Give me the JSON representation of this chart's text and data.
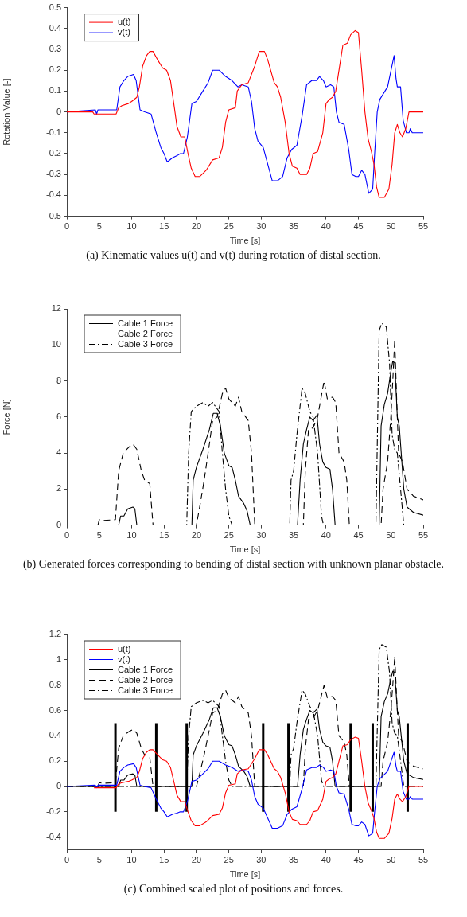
{
  "chart_data": [
    {
      "type": "line",
      "xlabel": "Time [s]",
      "ylabel": "Rotation Value [-]",
      "xlim": [
        0,
        55
      ],
      "xticks": [
        0,
        5,
        10,
        15,
        20,
        25,
        30,
        35,
        40,
        45,
        50,
        55
      ],
      "ylim": [
        -0.5,
        0.5
      ],
      "yticks": [
        -0.5,
        -0.4,
        -0.3,
        -0.2,
        -0.1,
        0,
        0.1,
        0.2,
        0.3,
        0.4,
        0.5
      ],
      "legend": "top left",
      "marker": "none",
      "annotations": [
        "(a) Kinematic values u(t) and v(t) during rotation of distal section."
      ],
      "series": [
        {
          "name": "u(t)",
          "color": "#ff0000",
          "line_style": "solid",
          "x": [
            0,
            4,
            4.2,
            5,
            7.6,
            8,
            8.5,
            9.5,
            10,
            10.8,
            11.2,
            11.7,
            12.3,
            12.8,
            13.3,
            14,
            14.8,
            15.4,
            16,
            16.6,
            17,
            17.6,
            18.2,
            18.7,
            19.2,
            19.8,
            20.5,
            21.5,
            22.5,
            23.5,
            24,
            24.5,
            25,
            26,
            26.3,
            27,
            28,
            29,
            29.7,
            30.5,
            31,
            32,
            32.5,
            33,
            33.7,
            34.3,
            34.8,
            35.5,
            36,
            37,
            37.5,
            38,
            38.7,
            39.5,
            40,
            40.5,
            41,
            41.5,
            42,
            42.6,
            43.3,
            43.8,
            44.5,
            45,
            45.5,
            46,
            46.5,
            47,
            47.4,
            47.8,
            48.2,
            49,
            49.7,
            50.2,
            50.6,
            51,
            51.4,
            51.8,
            52.3,
            52.8,
            53.5,
            55
          ],
          "values": [
            0,
            0,
            -0.01,
            -0.01,
            -0.01,
            0.02,
            0.03,
            0.04,
            0.05,
            0.07,
            0.12,
            0.22,
            0.27,
            0.29,
            0.29,
            0.25,
            0.21,
            0.2,
            0.15,
            0.02,
            -0.07,
            -0.12,
            -0.12,
            -0.2,
            -0.27,
            -0.31,
            -0.31,
            -0.28,
            -0.23,
            -0.22,
            -0.17,
            -0.05,
            0.01,
            0.02,
            0.1,
            0.13,
            0.14,
            0.22,
            0.29,
            0.29,
            0.25,
            0.14,
            0.12,
            0.07,
            -0.05,
            -0.2,
            -0.26,
            -0.27,
            -0.3,
            -0.3,
            -0.27,
            -0.2,
            -0.19,
            -0.1,
            0.04,
            0.06,
            0.07,
            0.1,
            0.2,
            0.32,
            0.33,
            0.37,
            0.39,
            0.38,
            0.2,
            0,
            -0.13,
            -0.19,
            -0.25,
            -0.36,
            -0.41,
            -0.41,
            -0.37,
            -0.25,
            -0.1,
            -0.06,
            -0.1,
            -0.12,
            -0.08,
            0,
            0,
            0
          ]
        },
        {
          "name": "v(t)",
          "color": "#0000ff",
          "line_style": "solid",
          "x": [
            0,
            4.4,
            4.6,
            4.8,
            7.7,
            8.2,
            8.8,
            9.4,
            10.3,
            10.7,
            11.3,
            12,
            13,
            13.8,
            14.5,
            15,
            15.5,
            16.3,
            17,
            17.5,
            18,
            18.6,
            19.3,
            20,
            21,
            21.8,
            22.5,
            23.5,
            24.5,
            25.5,
            26.1,
            26.4,
            27,
            28,
            28.5,
            29,
            29.5,
            30.3,
            31,
            31.7,
            32.5,
            33.3,
            34,
            34.7,
            35.5,
            36.3,
            37,
            37.8,
            38.5,
            39,
            39.6,
            40,
            40.7,
            41.2,
            41.6,
            42,
            42.8,
            43.5,
            44,
            44.6,
            45,
            45.5,
            46,
            46.6,
            47.2,
            47.5,
            47.9,
            48.3,
            49.5,
            50.1,
            50.5,
            50.8,
            51,
            51.5,
            51.9,
            52.4,
            52.8,
            53,
            53.3,
            55
          ],
          "values": [
            0,
            0.01,
            -0.01,
            0.01,
            0.01,
            0.12,
            0.15,
            0.17,
            0.18,
            0.15,
            0.01,
            0,
            -0.01,
            -0.1,
            -0.17,
            -0.2,
            -0.24,
            -0.22,
            -0.21,
            -0.2,
            -0.2,
            -0.12,
            0.04,
            0.05,
            0.1,
            0.14,
            0.2,
            0.2,
            0.17,
            0.15,
            0.13,
            0.12,
            0.13,
            0.12,
            0.05,
            -0.08,
            -0.14,
            -0.17,
            -0.25,
            -0.33,
            -0.33,
            -0.31,
            -0.22,
            -0.18,
            -0.16,
            -0.02,
            0.13,
            0.15,
            0.15,
            0.17,
            0.15,
            0.12,
            0.13,
            0.12,
            0,
            -0.05,
            -0.06,
            -0.18,
            -0.3,
            -0.31,
            -0.31,
            -0.28,
            -0.3,
            -0.39,
            -0.37,
            -0.2,
            0,
            0.06,
            0.12,
            0.21,
            0.27,
            0.16,
            0.12,
            0.12,
            -0.04,
            -0.1,
            -0.1,
            -0.08,
            -0.1,
            -0.1
          ]
        }
      ]
    },
    {
      "type": "line",
      "xlabel": "Time [s]",
      "ylabel": "Force [N]",
      "xlim": [
        0,
        55
      ],
      "xticks": [
        0,
        5,
        10,
        15,
        20,
        25,
        30,
        35,
        40,
        45,
        50,
        55
      ],
      "ylim": [
        0,
        12
      ],
      "yticks": [
        0,
        2,
        4,
        6,
        8,
        10,
        12
      ],
      "legend": "top left",
      "marker": "none",
      "annotations": [
        "(b) Generated forces corresponding to bending of distal section with unknown planar obstacle."
      ],
      "series": [
        {
          "name": "Cable 1 Force",
          "color": "#000000",
          "line_style": "solid",
          "x": [
            0,
            8,
            8.3,
            8.8,
            9.4,
            10.2,
            10.5,
            10.8,
            19.3,
            19.5,
            20,
            21,
            22,
            22.6,
            23.2,
            23.7,
            24.3,
            25,
            25.5,
            26,
            26.5,
            27.3,
            27.8,
            28.3,
            35.6,
            36,
            36.5,
            37,
            37.5,
            38,
            38.6,
            39,
            39.5,
            40,
            40.6,
            41,
            41.4,
            48.2,
            48.5,
            49,
            49.5,
            50,
            50.3,
            50.6,
            51,
            51.3,
            51.5,
            52,
            52.5,
            53.5,
            55
          ],
          "values": [
            0,
            0,
            0.5,
            0.5,
            0.9,
            1.0,
            0.9,
            0,
            0,
            2.5,
            3.2,
            4.2,
            5.3,
            6.2,
            6.2,
            5.5,
            4.0,
            3.3,
            3.2,
            2.5,
            1.6,
            1.2,
            0.8,
            0,
            0,
            2.5,
            4.5,
            5.3,
            6.0,
            5.8,
            6.1,
            4.5,
            3.5,
            3.2,
            3.1,
            2.0,
            0,
            0,
            5.5,
            6.7,
            7.3,
            8.5,
            9.1,
            9.0,
            6.0,
            5.5,
            4.5,
            2.0,
            1.0,
            0.7,
            0.55
          ]
        },
        {
          "name": "Cable 2 Force",
          "color": "#000000",
          "line_style": "dashed",
          "x": [
            0,
            4.8,
            5,
            5.5,
            7.5,
            8,
            8.7,
            9.5,
            10.2,
            10.8,
            11.5,
            12,
            12.8,
            13.3,
            20,
            20.5,
            21.2,
            22,
            22.5,
            23.2,
            24,
            24.5,
            25,
            26,
            26.5,
            27,
            28,
            28.5,
            29,
            36.5,
            36.8,
            37.3,
            38,
            38.7,
            39.2,
            39.7,
            40.2,
            41,
            41.5,
            42,
            42.8,
            43.2,
            43.6,
            48.5,
            48.8,
            49.5,
            50,
            50.3,
            50.6,
            50.9,
            51.2,
            51.8,
            52.5,
            53.5,
            55
          ],
          "values": [
            0,
            0,
            0.3,
            0.25,
            0.3,
            3.0,
            4.0,
            4.3,
            4.5,
            4.2,
            3.0,
            2.5,
            2.3,
            0,
            0,
            1.0,
            2.5,
            4.5,
            5.8,
            6.0,
            7.3,
            7.6,
            7.0,
            6.6,
            7.1,
            6.3,
            5.8,
            4.0,
            0,
            0,
            3.0,
            5.3,
            5.4,
            6.0,
            7.0,
            8.0,
            7.0,
            7.1,
            6.8,
            4.0,
            3.5,
            2.5,
            0,
            0,
            2.0,
            3.5,
            6.0,
            8.0,
            10.3,
            7.0,
            4.0,
            3.5,
            2.0,
            1.6,
            1.4
          ]
        },
        {
          "name": "Cable 3 Force",
          "color": "#000000",
          "line_style": "dashdot",
          "x": [
            0,
            18.5,
            18.8,
            19.2,
            20,
            21,
            21.8,
            22.5,
            23.5,
            24,
            24.5,
            25,
            25.5,
            34.4,
            34.6,
            35,
            35.5,
            36.3,
            36.8,
            37.5,
            38,
            38.7,
            39.3,
            39.6,
            47.7,
            48.2,
            48.6,
            49.3,
            49.8,
            50.2,
            50.6,
            51,
            51.5,
            52,
            55
          ],
          "values": [
            0,
            0,
            4.0,
            6.3,
            6.6,
            6.8,
            6.6,
            6.8,
            6.3,
            4.0,
            2.0,
            0.5,
            0,
            0,
            2.5,
            3.0,
            5.0,
            7.6,
            7.3,
            6.3,
            6.0,
            4.0,
            0.5,
            0,
            0,
            10.8,
            11.2,
            11.0,
            9.0,
            5.0,
            4.2,
            4.0,
            2.0,
            0,
            0
          ]
        }
      ]
    },
    {
      "type": "line",
      "xlabel": "Time [s]",
      "xlim": [
        0,
        55
      ],
      "xticks": [
        0,
        5,
        10,
        15,
        20,
        25,
        30,
        35,
        40,
        45,
        50,
        55
      ],
      "ylim": [
        -0.5,
        1.2
      ],
      "yticks": [
        -0.4,
        -0.2,
        0,
        0.2,
        0.4,
        0.6,
        0.8,
        1,
        1.2
      ],
      "legend": "top left",
      "marker": "none",
      "annotations": [
        "(c) Combined scaled plot of positions and forces."
      ],
      "series": [
        {
          "name": "u(t)",
          "color": "#ff0000",
          "line_style": "solid",
          "x": [
            4.2,
            5,
            7.6,
            8,
            8.5,
            9.5,
            10,
            10.8,
            11.2,
            11.7,
            12.3,
            12.8,
            13.3,
            14,
            14.8,
            15.4,
            16,
            16.6,
            17,
            17.6,
            18.2,
            18.7,
            19.2,
            19.8,
            20.5,
            21.5,
            22.5,
            23.5,
            24,
            24.5,
            25,
            26,
            26.3,
            27,
            28,
            29,
            29.7,
            30.5,
            31,
            32,
            32.5,
            33,
            33.7,
            34.3,
            34.8,
            35.5,
            36,
            37,
            37.5,
            38,
            38.7,
            39.5,
            40,
            40.5,
            41,
            41.5,
            42,
            42.6,
            43.3,
            43.8,
            44.5,
            45,
            45.5,
            46,
            46.5,
            47,
            47.4,
            47.8,
            48.2,
            49,
            49.7,
            50.2,
            50.6,
            51,
            51.4,
            51.8,
            52.3,
            52.8,
            53.5,
            55
          ],
          "values": [
            -0.01,
            -0.01,
            -0.01,
            0.02,
            0.03,
            0.04,
            0.05,
            0.07,
            0.12,
            0.22,
            0.27,
            0.29,
            0.29,
            0.25,
            0.21,
            0.2,
            0.15,
            0.02,
            -0.07,
            -0.12,
            -0.12,
            -0.2,
            -0.27,
            -0.31,
            -0.31,
            -0.28,
            -0.23,
            -0.22,
            -0.17,
            -0.05,
            0.01,
            0.02,
            0.1,
            0.13,
            0.14,
            0.22,
            0.29,
            0.29,
            0.25,
            0.14,
            0.12,
            0.07,
            -0.05,
            -0.2,
            -0.26,
            -0.27,
            -0.3,
            -0.3,
            -0.27,
            -0.2,
            -0.19,
            -0.1,
            0.04,
            0.06,
            0.07,
            0.1,
            0.2,
            0.32,
            0.33,
            0.37,
            0.39,
            0.38,
            0.2,
            0,
            -0.13,
            -0.19,
            -0.25,
            -0.36,
            -0.41,
            -0.41,
            -0.37,
            -0.25,
            -0.1,
            -0.06,
            -0.1,
            -0.12,
            -0.08,
            0,
            0,
            0
          ]
        },
        {
          "name": "v(t)",
          "color": "#0000ff",
          "line_style": "solid",
          "x": [
            0,
            4.4,
            4.6,
            4.8,
            7.7,
            8.2,
            8.8,
            9.4,
            10.3,
            10.7,
            11.3,
            12,
            13,
            13.8,
            14.5,
            15,
            15.5,
            16.3,
            17,
            17.5,
            18,
            18.6,
            19.3,
            20,
            21,
            21.8,
            22.5,
            23.5,
            24.5,
            25.5,
            26.1,
            26.4,
            27,
            28,
            28.5,
            29,
            29.5,
            30.3,
            31,
            31.7,
            32.5,
            33.3,
            34,
            34.7,
            35.5,
            36.3,
            37,
            37.8,
            38.5,
            39,
            39.6,
            40,
            40.7,
            41.2,
            41.6,
            42,
            42.8,
            43.5,
            44,
            44.6,
            45,
            45.5,
            46,
            46.6,
            47.2,
            47.5,
            47.9,
            48.3,
            49.5,
            50.1,
            50.5,
            50.8,
            51,
            51.5,
            51.9,
            52.4,
            52.8,
            53,
            53.3,
            55
          ],
          "values": [
            0,
            0.01,
            -0.01,
            0.01,
            0.01,
            0.12,
            0.15,
            0.17,
            0.18,
            0.15,
            0.01,
            0,
            -0.01,
            -0.1,
            -0.17,
            -0.2,
            -0.24,
            -0.22,
            -0.21,
            -0.2,
            -0.2,
            -0.12,
            0.04,
            0.05,
            0.1,
            0.14,
            0.2,
            0.2,
            0.17,
            0.15,
            0.13,
            0.12,
            0.13,
            0.12,
            0.05,
            -0.08,
            -0.14,
            -0.17,
            -0.25,
            -0.33,
            -0.33,
            -0.31,
            -0.22,
            -0.18,
            -0.16,
            -0.02,
            0.13,
            0.15,
            0.15,
            0.17,
            0.15,
            0.12,
            0.13,
            0.12,
            0,
            -0.05,
            -0.06,
            -0.18,
            -0.3,
            -0.31,
            -0.31,
            -0.28,
            -0.3,
            -0.39,
            -0.37,
            -0.2,
            0,
            0.06,
            0.12,
            0.21,
            0.27,
            0.16,
            0.12,
            0.12,
            -0.04,
            -0.1,
            -0.1,
            -0.08,
            -0.1,
            -0.1
          ]
        },
        {
          "name": "Cable 1 Force",
          "color": "#000000",
          "line_style": "solid",
          "x": [
            0,
            8,
            8.3,
            8.8,
            9.4,
            10.2,
            10.5,
            10.8,
            19.3,
            19.5,
            20,
            21,
            22,
            22.6,
            23.2,
            23.7,
            24.3,
            25,
            25.5,
            26,
            26.5,
            27.3,
            27.8,
            28.3,
            35.6,
            36,
            36.5,
            37,
            37.5,
            38,
            38.6,
            39,
            39.5,
            40,
            40.6,
            41,
            41.4,
            48.2,
            48.5,
            49,
            49.5,
            50,
            50.3,
            50.6,
            51,
            51.3,
            51.5,
            52,
            52.5,
            53.5,
            55
          ],
          "values": [
            0,
            0,
            0.05,
            0.05,
            0.09,
            0.1,
            0.09,
            0,
            0,
            0.25,
            0.32,
            0.42,
            0.53,
            0.62,
            0.62,
            0.55,
            0.4,
            0.33,
            0.32,
            0.25,
            0.16,
            0.12,
            0.08,
            0,
            0,
            0.25,
            0.45,
            0.53,
            0.6,
            0.58,
            0.61,
            0.45,
            0.35,
            0.32,
            0.31,
            0.2,
            0,
            0,
            0.55,
            0.67,
            0.73,
            0.85,
            0.91,
            0.9,
            0.6,
            0.55,
            0.45,
            0.2,
            0.1,
            0.07,
            0.055
          ]
        },
        {
          "name": "Cable 2 Force",
          "color": "#000000",
          "line_style": "dashed",
          "x": [
            0,
            4.8,
            5,
            5.5,
            7.5,
            8,
            8.7,
            9.5,
            10.2,
            10.8,
            11.5,
            12,
            12.8,
            13.3,
            20,
            20.5,
            21.2,
            22,
            22.5,
            23.2,
            24,
            24.5,
            25,
            26,
            26.5,
            27,
            28,
            28.5,
            29,
            36.5,
            36.8,
            37.3,
            38,
            38.7,
            39.2,
            39.7,
            40.2,
            41,
            41.5,
            42,
            42.8,
            43.2,
            43.6,
            48.5,
            48.8,
            49.5,
            50,
            50.3,
            50.6,
            50.9,
            51.2,
            51.8,
            52.5,
            53.5,
            55
          ],
          "values": [
            0,
            0,
            0.03,
            0.025,
            0.03,
            0.3,
            0.4,
            0.43,
            0.45,
            0.42,
            0.3,
            0.25,
            0.23,
            0,
            0,
            0.1,
            0.25,
            0.45,
            0.58,
            0.6,
            0.73,
            0.76,
            0.7,
            0.66,
            0.71,
            0.63,
            0.58,
            0.4,
            0,
            0,
            0.3,
            0.53,
            0.54,
            0.6,
            0.7,
            0.8,
            0.7,
            0.71,
            0.68,
            0.4,
            0.35,
            0.25,
            0,
            0,
            0.2,
            0.35,
            0.6,
            0.8,
            1.03,
            0.7,
            0.4,
            0.35,
            0.2,
            0.16,
            0.14
          ]
        },
        {
          "name": "Cable 3 Force",
          "color": "#000000",
          "line_style": "dashdot",
          "x": [
            0,
            18.5,
            18.8,
            19.2,
            20,
            21,
            21.8,
            22.5,
            23.5,
            24,
            24.5,
            25,
            25.5,
            34.4,
            34.6,
            35,
            35.5,
            36.3,
            36.8,
            37.5,
            38,
            38.7,
            39.3,
            39.6,
            47.7,
            48.2,
            48.6,
            49.3,
            49.8,
            50.2,
            50.6,
            51,
            51.5,
            52,
            55
          ],
          "values": [
            0,
            0,
            0.4,
            0.63,
            0.66,
            0.68,
            0.66,
            0.68,
            0.63,
            0.4,
            0.2,
            0.05,
            0,
            0,
            0.25,
            0.3,
            0.5,
            0.76,
            0.73,
            0.63,
            0.6,
            0.4,
            0.05,
            0,
            0,
            1.08,
            1.12,
            1.1,
            0.9,
            0.5,
            0.42,
            0.4,
            0.2,
            0,
            0
          ]
        },
        {
          "color": "#000000",
          "line_style": "solid",
          "x": [
            7.5,
            7.5
          ],
          "values": [
            -0.2,
            0.5
          ]
        },
        {
          "color": "#000000",
          "line_style": "solid",
          "x": [
            13.8,
            13.8
          ],
          "values": [
            -0.2,
            0.5
          ]
        },
        {
          "color": "#000000",
          "line_style": "solid",
          "x": [
            18.5,
            18.5
          ],
          "values": [
            -0.2,
            0.5
          ]
        },
        {
          "color": "#000000",
          "line_style": "solid",
          "x": [
            30.3,
            30.3
          ],
          "values": [
            -0.2,
            0.5
          ]
        },
        {
          "color": "#000000",
          "line_style": "solid",
          "x": [
            34.2,
            34.2
          ],
          "values": [
            -0.2,
            0.5
          ]
        },
        {
          "color": "#000000",
          "line_style": "solid",
          "x": [
            43.8,
            43.8
          ],
          "values": [
            -0.2,
            0.5
          ]
        },
        {
          "color": "#000000",
          "line_style": "solid",
          "x": [
            47.2,
            47.2
          ],
          "values": [
            -0.2,
            0.5
          ]
        },
        {
          "color": "#000000",
          "line_style": "solid",
          "x": [
            52.6,
            52.6
          ],
          "values": [
            -0.2,
            0.5
          ]
        }
      ]
    }
  ]
}
